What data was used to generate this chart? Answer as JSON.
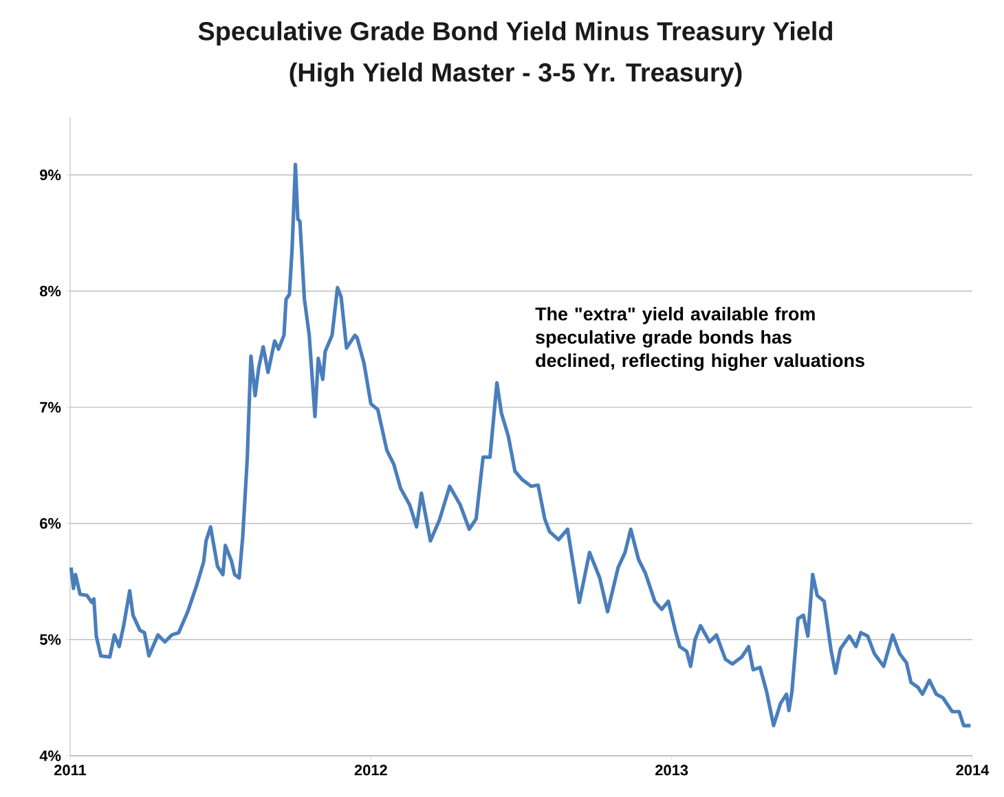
{
  "chart_data": {
    "type": "line",
    "title": "Speculative Grade Bond Yield Minus Treasury Yield",
    "subtitle": "(High Yield Master - 3-5 Yr. Treasury)",
    "annotations": [
      "The \"extra\" yield available from speculative grade bonds has declined, reflecting higher valuations"
    ],
    "xlim": [
      2011,
      2014
    ],
    "xticks": [
      2011,
      2012,
      2013,
      2014
    ],
    "ylim": [
      4,
      9.5
    ],
    "yticks": [
      {
        "value": 4,
        "label": "4%"
      },
      {
        "value": 5,
        "label": "5%"
      },
      {
        "value": 6,
        "label": "6%"
      },
      {
        "value": 7,
        "label": "7%"
      },
      {
        "value": 8,
        "label": "8%"
      },
      {
        "value": 9,
        "label": "9%"
      }
    ],
    "grid": "y",
    "series": [
      {
        "color": "#4a7ebb",
        "x": [
          2011.003,
          2011.011,
          2011.018,
          2011.033,
          2011.056,
          2011.072,
          2011.079,
          2011.087,
          2011.102,
          2011.132,
          2011.147,
          2011.163,
          2011.178,
          2011.198,
          2011.209,
          2011.232,
          2011.247,
          2011.262,
          2011.292,
          2011.315,
          2011.338,
          2011.361,
          2011.391,
          2011.421,
          2011.444,
          2011.452,
          2011.467,
          2011.49,
          2011.508,
          2011.516,
          2011.536,
          2011.547,
          2011.562,
          2011.574,
          2011.589,
          2011.601,
          2011.615,
          2011.627,
          2011.642,
          2011.658,
          2011.68,
          2011.693,
          2011.711,
          2011.718,
          2011.729,
          2011.738,
          2011.749,
          2011.757,
          2011.764,
          2011.779,
          2011.795,
          2011.814,
          2011.825,
          2011.84,
          2011.848,
          2011.871,
          2011.889,
          2011.901,
          2011.919,
          2011.947,
          2011.954,
          2011.977,
          2012.0,
          2012.023,
          2012.053,
          2012.076,
          2012.099,
          2012.129,
          2012.152,
          2012.168,
          2012.198,
          2012.228,
          2012.262,
          2012.297,
          2012.327,
          2012.35,
          2012.373,
          2012.396,
          2012.419,
          2012.434,
          2012.457,
          2012.479,
          2012.502,
          2012.533,
          2012.556,
          2012.578,
          2012.594,
          2012.624,
          2012.654,
          2012.693,
          2012.727,
          2012.761,
          2012.787,
          2012.822,
          2012.845,
          2012.864,
          2012.89,
          2012.913,
          2012.944,
          2012.967,
          2012.989,
          2013.012,
          2013.027,
          2013.05,
          2013.063,
          2013.078,
          2013.096,
          2013.126,
          2013.149,
          2013.179,
          2013.202,
          2013.233,
          2013.256,
          2013.271,
          2013.294,
          2013.316,
          2013.339,
          2013.362,
          2013.382,
          2013.39,
          2013.4,
          2013.42,
          2013.438,
          2013.453,
          2013.469,
          2013.484,
          2013.507,
          2013.53,
          2013.545,
          2013.561,
          2013.591,
          2013.613,
          2013.629,
          2013.652,
          2013.674,
          2013.705,
          2013.735,
          2013.758,
          2013.781,
          2013.796,
          2013.819,
          2013.834,
          2013.857,
          2013.88,
          2013.902,
          2013.933,
          2013.956,
          2013.971,
          2013.994
        ],
        "values": [
          5.62,
          5.44,
          5.56,
          5.39,
          5.38,
          5.32,
          5.35,
          5.03,
          4.86,
          4.85,
          5.04,
          4.94,
          5.12,
          5.42,
          5.21,
          5.08,
          5.06,
          4.86,
          5.04,
          4.98,
          5.04,
          5.06,
          5.24,
          5.47,
          5.67,
          5.85,
          5.97,
          5.63,
          5.56,
          5.81,
          5.68,
          5.56,
          5.53,
          5.89,
          6.56,
          7.44,
          7.1,
          7.34,
          7.52,
          7.3,
          7.57,
          7.5,
          7.62,
          7.93,
          7.97,
          8.36,
          9.09,
          8.62,
          8.6,
          7.93,
          7.62,
          6.92,
          7.42,
          7.24,
          7.48,
          7.62,
          8.03,
          7.95,
          7.51,
          7.62,
          7.6,
          7.38,
          7.03,
          6.98,
          6.63,
          6.51,
          6.3,
          6.16,
          5.97,
          6.26,
          5.85,
          6.03,
          6.32,
          6.16,
          5.95,
          6.04,
          6.57,
          6.57,
          7.21,
          6.95,
          6.75,
          6.45,
          6.38,
          6.32,
          6.33,
          6.04,
          5.93,
          5.86,
          5.95,
          5.32,
          5.75,
          5.53,
          5.24,
          5.62,
          5.75,
          5.95,
          5.69,
          5.57,
          5.33,
          5.26,
          5.33,
          5.08,
          4.94,
          4.9,
          4.77,
          5.0,
          5.12,
          4.98,
          5.04,
          4.83,
          4.79,
          4.85,
          4.94,
          4.74,
          4.76,
          4.55,
          4.26,
          4.45,
          4.53,
          4.39,
          4.55,
          5.18,
          5.21,
          5.03,
          5.56,
          5.38,
          5.33,
          4.91,
          4.71,
          4.92,
          5.03,
          4.94,
          5.06,
          5.03,
          4.88,
          4.77,
          5.04,
          4.88,
          4.8,
          4.63,
          4.59,
          4.53,
          4.65,
          4.53,
          4.5,
          4.38,
          4.38,
          4.26,
          4.26
        ]
      }
    ]
  }
}
